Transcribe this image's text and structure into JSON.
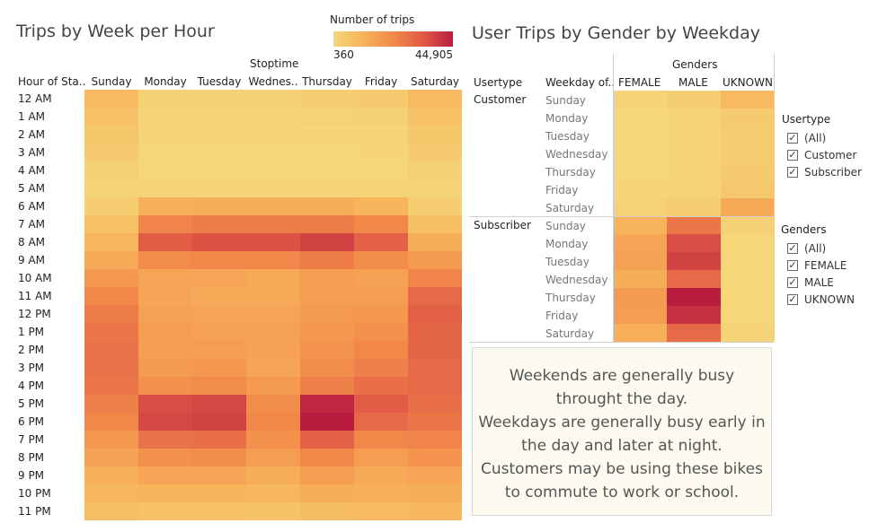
{
  "left_chart": {
    "title": "Trips by Week per Hour",
    "col_group_label": "Stoptime",
    "row_header": "Hour of Sta..",
    "columns": [
      "Sunday",
      "Monday",
      "Tuesday",
      "Wednes..",
      "Thursday",
      "Friday",
      "Saturday"
    ],
    "rows": [
      "12 AM",
      "1 AM",
      "2 AM",
      "3 AM",
      "4 AM",
      "5 AM",
      "6 AM",
      "7 AM",
      "8 AM",
      "9 AM",
      "10 AM",
      "11 AM",
      "12 PM",
      "1 PM",
      "2 PM",
      "3 PM",
      "4 PM",
      "5 PM",
      "6 PM",
      "7 PM",
      "8 PM",
      "9 PM",
      "10 PM",
      "11 PM"
    ]
  },
  "legend": {
    "title": "Number of trips",
    "min_label": "360",
    "max_label": "44,905"
  },
  "right_chart": {
    "title": "User Trips by Gender by Weekday",
    "group_label": "Genders",
    "col_headers": [
      "Usertype",
      "Weekday of..",
      "FEMALE",
      "MALE",
      "UKNOWN"
    ],
    "groups": [
      {
        "label": "Customer",
        "days": [
          "Sunday",
          "Monday",
          "Tuesday",
          "Wednesday",
          "Thursday",
          "Friday",
          "Saturday"
        ]
      },
      {
        "label": "Subscriber",
        "days": [
          "Sunday",
          "Monday",
          "Tuesday",
          "Wednesday",
          "Thursday",
          "Friday",
          "Saturday"
        ]
      }
    ]
  },
  "note_lines": [
    "Weekends are generally busy",
    "throught the day.",
    "Weekdays are generally busy early in",
    "the day and later at night.",
    "Customers may be using these bikes",
    "to commute to work or school."
  ],
  "filters": {
    "usertype": {
      "title": "Usertype",
      "options": [
        "(All)",
        "Customer",
        "Subscriber"
      ]
    },
    "genders": {
      "title": "Genders",
      "options": [
        "(All)",
        "FEMALE",
        "MALE",
        "UKNOWN"
      ]
    },
    "check_glyph": "✓"
  },
  "chart_data": [
    {
      "type": "heatmap",
      "title": "Trips by Week per Hour",
      "xlabel": "Stoptime",
      "ylabel": "Hour of Sta..",
      "x": [
        "Sunday",
        "Monday",
        "Tuesday",
        "Wednes..",
        "Thursday",
        "Friday",
        "Saturday"
      ],
      "y": [
        "12 AM",
        "1 AM",
        "2 AM",
        "3 AM",
        "4 AM",
        "5 AM",
        "6 AM",
        "7 AM",
        "8 AM",
        "9 AM",
        "10 AM",
        "11 AM",
        "12 PM",
        "1 PM",
        "2 PM",
        "3 PM",
        "4 PM",
        "5 PM",
        "6 PM",
        "7 PM",
        "8 PM",
        "9 PM",
        "10 PM",
        "11 PM"
      ],
      "color_range": [
        360,
        44905
      ],
      "colors": [
        "#f5d77a",
        "#f7b25a",
        "#f28a4a",
        "#e05a45",
        "#b81c3f"
      ],
      "values": [
        [
          9000,
          2500,
          2500,
          2500,
          3000,
          4000,
          9000
        ],
        [
          7000,
          1500,
          1500,
          1500,
          1800,
          2500,
          7000
        ],
        [
          5500,
          900,
          900,
          900,
          1100,
          1500,
          5500
        ],
        [
          4000,
          600,
          600,
          600,
          700,
          900,
          4000
        ],
        [
          2500,
          600,
          600,
          600,
          700,
          800,
          2500
        ],
        [
          1500,
          1200,
          1200,
          1200,
          1300,
          1300,
          1500
        ],
        [
          3500,
          12000,
          13000,
          13000,
          13000,
          11000,
          3500
        ],
        [
          7000,
          24000,
          26000,
          26000,
          26000,
          23000,
          7500
        ],
        [
          10000,
          33000,
          35000,
          35000,
          38000,
          32000,
          13000
        ],
        [
          14000,
          22000,
          23000,
          23000,
          26000,
          22000,
          18000
        ],
        [
          19000,
          15000,
          15000,
          14000,
          17000,
          16000,
          24000
        ],
        [
          23000,
          15000,
          14000,
          14000,
          17000,
          17000,
          30000
        ],
        [
          26000,
          16000,
          15000,
          15000,
          18000,
          19000,
          32000
        ],
        [
          27000,
          17000,
          16000,
          16000,
          19000,
          21000,
          31000
        ],
        [
          28000,
          17000,
          17000,
          16000,
          20000,
          23000,
          31000
        ],
        [
          28000,
          18000,
          19000,
          15000,
          22000,
          25000,
          30000
        ],
        [
          27000,
          21000,
          22000,
          18000,
          25000,
          29000,
          30000
        ],
        [
          25000,
          36000,
          37000,
          22000,
          43000,
          33000,
          29000
        ],
        [
          23000,
          37000,
          38000,
          23000,
          44905,
          30000,
          27000
        ],
        [
          19000,
          28000,
          29000,
          21000,
          32000,
          23000,
          24000
        ],
        [
          16000,
          21000,
          22000,
          17000,
          23000,
          17000,
          20000
        ],
        [
          12000,
          15000,
          15000,
          13000,
          17000,
          14000,
          15000
        ],
        [
          10000,
          11000,
          11000,
          10000,
          13000,
          12000,
          13000
        ],
        [
          8000,
          7000,
          7000,
          6500,
          8500,
          9000,
          10000
        ]
      ]
    },
    {
      "type": "heatmap",
      "title": "User Trips by Gender by Weekday",
      "xlabel": "Genders",
      "ylabel": "Usertype / Weekday of..",
      "x": [
        "FEMALE",
        "MALE",
        "UKNOWN"
      ],
      "y": [
        "Customer Sunday",
        "Customer Monday",
        "Customer Tuesday",
        "Customer Wednesday",
        "Customer Thursday",
        "Customer Friday",
        "Customer Saturday",
        "Subscriber Sunday",
        "Subscriber Monday",
        "Subscriber Tuesday",
        "Subscriber Wednesday",
        "Subscriber Thursday",
        "Subscriber Friday",
        "Subscriber Saturday"
      ],
      "color_range": [
        360,
        44905
      ],
      "colors": [
        "#f5d77a",
        "#f7b25a",
        "#f28a4a",
        "#e05a45",
        "#b81c3f"
      ],
      "values": [
        [
          1500,
          3000,
          9000
        ],
        [
          600,
          1200,
          4000
        ],
        [
          500,
          1000,
          3500
        ],
        [
          500,
          1000,
          3500
        ],
        [
          600,
          1100,
          4000
        ],
        [
          900,
          1600,
          5000
        ],
        [
          1800,
          3500,
          14000
        ],
        [
          11000,
          27000,
          2500
        ],
        [
          15000,
          36000,
          700
        ],
        [
          16000,
          38000,
          700
        ],
        [
          13000,
          30000,
          700
        ],
        [
          18000,
          44905,
          800
        ],
        [
          17000,
          41000,
          800
        ],
        [
          12000,
          30000,
          1500
        ]
      ]
    }
  ]
}
